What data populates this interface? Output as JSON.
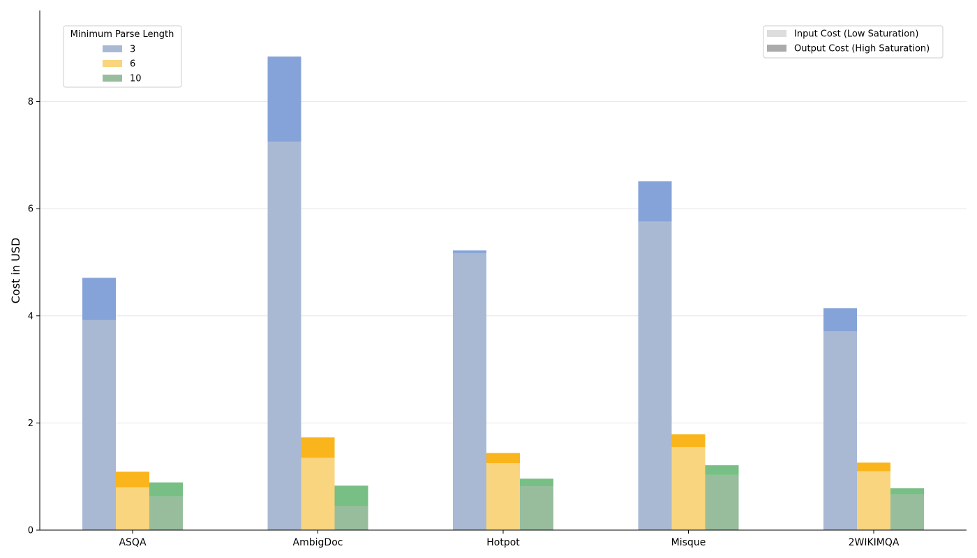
{
  "chart_data": {
    "type": "bar",
    "stacked": true,
    "title": "",
    "xlabel": "",
    "ylabel": "Cost in USD",
    "ylim": [
      0,
      9.7
    ],
    "yticks": [
      0,
      2,
      4,
      6,
      8
    ],
    "grid": "horizontal",
    "categories": [
      "ASQA",
      "AmbigDoc",
      "Hotpot",
      "Misque",
      "2WIKIMQA"
    ],
    "series": [
      {
        "name": "3",
        "input_color": "#a9b9d4",
        "output_color": "#85a3d8",
        "input": [
          3.92,
          7.25,
          5.17,
          5.76,
          3.71
        ],
        "total": [
          4.71,
          8.84,
          5.22,
          6.51,
          4.14
        ]
      },
      {
        "name": "6",
        "input_color": "#f8d57e",
        "output_color": "#f9b51b",
        "input": [
          0.8,
          1.35,
          1.25,
          1.55,
          1.1
        ],
        "total": [
          1.09,
          1.73,
          1.44,
          1.79,
          1.26
        ]
      },
      {
        "name": "10",
        "input_color": "#98bd9d",
        "output_color": "#77bf85",
        "input": [
          0.63,
          0.45,
          0.82,
          1.03,
          0.67
        ],
        "total": [
          0.89,
          0.83,
          0.96,
          1.21,
          0.78
        ]
      }
    ],
    "legend_series": {
      "title": "Minimum Parse Length",
      "placement": "top-left"
    },
    "legend_cost": {
      "placement": "top-right",
      "entries": [
        {
          "label": "Input Cost (Low Saturation)",
          "color": "#dddddd"
        },
        {
          "label": "Output Cost (High Saturation)",
          "color": "#aaaaaa"
        }
      ]
    }
  }
}
